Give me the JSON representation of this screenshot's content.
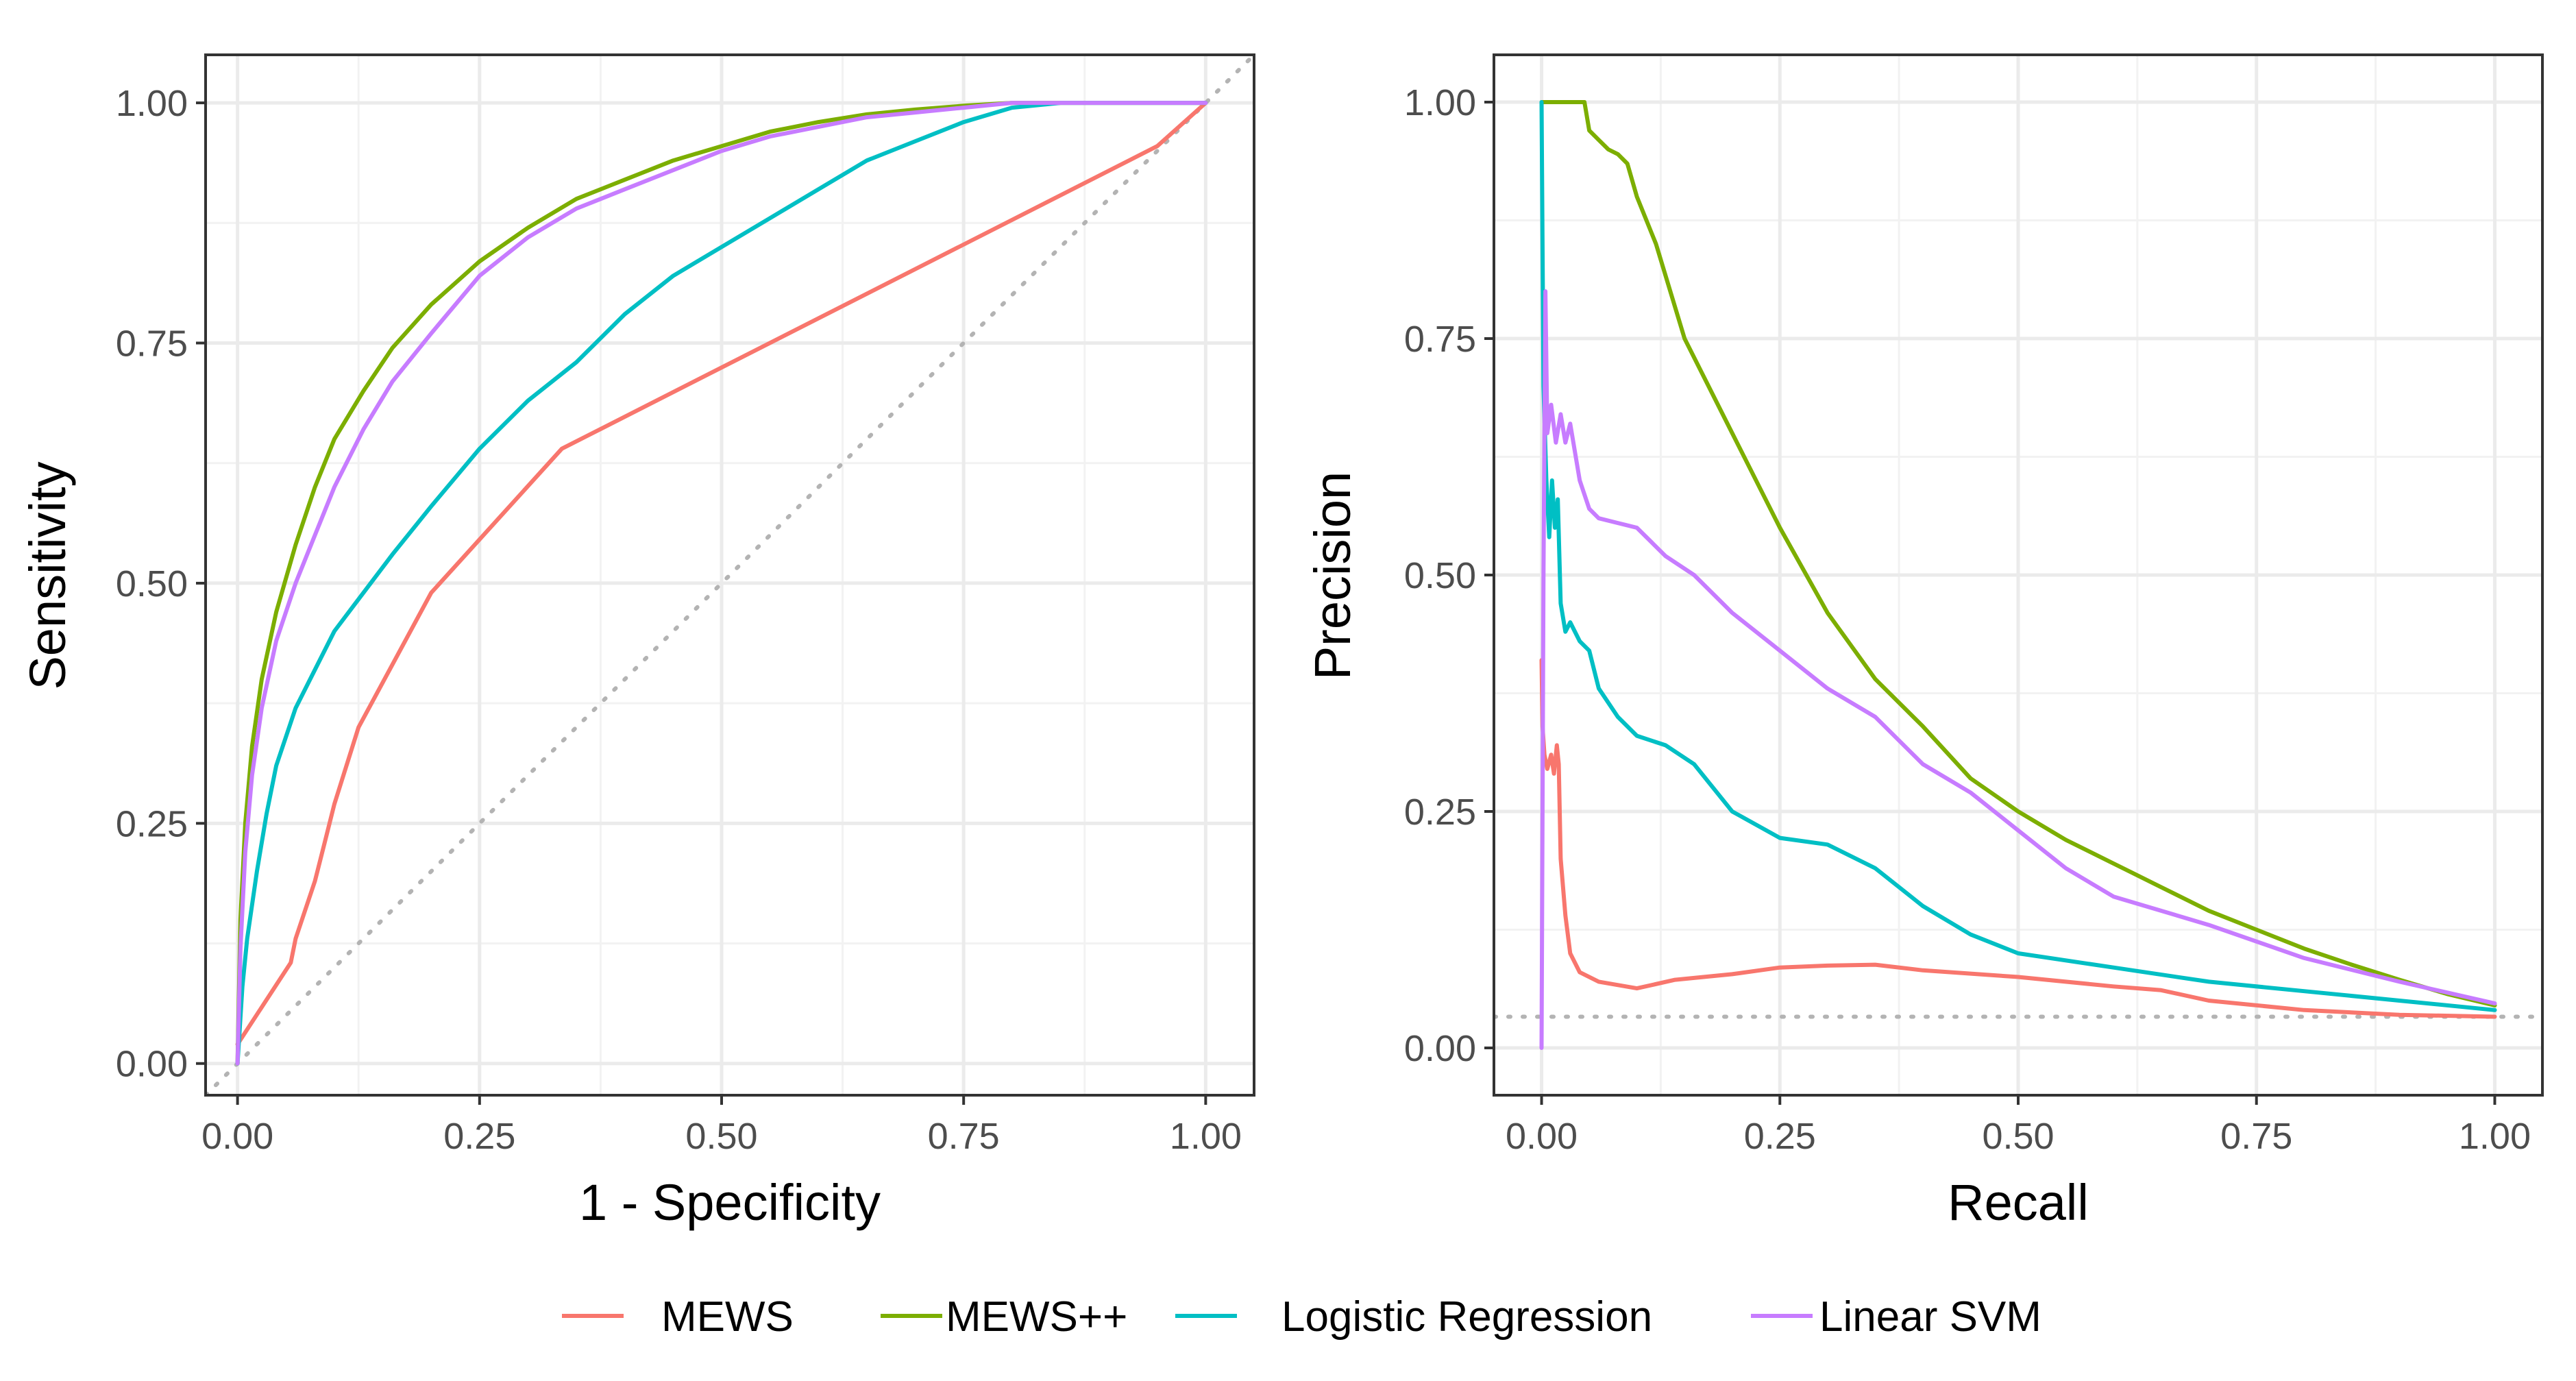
{
  "legend": {
    "entries": [
      {
        "label": "MEWS",
        "color": "#F8766D"
      },
      {
        "label": "MEWS++",
        "color": "#7CAE00"
      },
      {
        "label": "Logistic Regression",
        "color": "#00BFC4"
      },
      {
        "label": "Linear SVM",
        "color": "#C77CFF"
      }
    ]
  },
  "chart_data": [
    {
      "type": "line",
      "title": "",
      "xlabel": "1 - Specificity",
      "ylabel": "Sensitivity",
      "xlim": [
        -0.033,
        1.05
      ],
      "ylim": [
        -0.033,
        1.05
      ],
      "xticks": [
        "0.00",
        "0.25",
        "0.50",
        "0.75",
        "1.00"
      ],
      "yticks": [
        "0.00",
        "0.25",
        "0.50",
        "0.75",
        "1.00"
      ],
      "xtick_values": [
        0,
        0.25,
        0.5,
        0.75,
        1.0
      ],
      "ytick_values": [
        0,
        0.25,
        0.5,
        0.75,
        1.0
      ],
      "grid": true,
      "reference_line": {
        "from": [
          -0.033,
          -0.033
        ],
        "to": [
          1.05,
          1.05
        ],
        "color": "#b3b3b3",
        "style": "dotted"
      },
      "series": [
        {
          "name": "MEWS",
          "color": "#F8766D",
          "x": [
            0,
            0.055,
            0.06,
            0.08,
            0.09,
            0.1,
            0.125,
            0.2,
            0.335,
            0.95,
            1.0
          ],
          "y": [
            0.02,
            0.105,
            0.13,
            0.19,
            0.23,
            0.27,
            0.35,
            0.49,
            0.64,
            0.955,
            1.0
          ]
        },
        {
          "name": "MEWS++",
          "color": "#7CAE00",
          "x": [
            0,
            0.003,
            0.008,
            0.015,
            0.025,
            0.04,
            0.06,
            0.08,
            0.1,
            0.13,
            0.16,
            0.2,
            0.25,
            0.3,
            0.35,
            0.4,
            0.45,
            0.5,
            0.55,
            0.6,
            0.65,
            0.7,
            0.75,
            0.8,
            0.9,
            1.0
          ],
          "y": [
            0,
            0.15,
            0.25,
            0.33,
            0.4,
            0.47,
            0.54,
            0.6,
            0.65,
            0.7,
            0.745,
            0.79,
            0.835,
            0.87,
            0.9,
            0.92,
            0.94,
            0.955,
            0.97,
            0.98,
            0.988,
            0.993,
            0.997,
            1.0,
            1.0,
            1.0
          ]
        },
        {
          "name": "Logistic Regression",
          "color": "#00BFC4",
          "x": [
            0,
            0.005,
            0.01,
            0.02,
            0.03,
            0.04,
            0.06,
            0.08,
            0.1,
            0.13,
            0.16,
            0.2,
            0.25,
            0.3,
            0.35,
            0.4,
            0.45,
            0.5,
            0.55,
            0.6,
            0.65,
            0.7,
            0.75,
            0.8,
            0.85,
            0.9,
            1.0
          ],
          "y": [
            0,
            0.08,
            0.13,
            0.2,
            0.26,
            0.31,
            0.37,
            0.41,
            0.45,
            0.49,
            0.53,
            0.58,
            0.64,
            0.69,
            0.73,
            0.78,
            0.82,
            0.85,
            0.88,
            0.91,
            0.94,
            0.96,
            0.98,
            0.995,
            1.0,
            1.0,
            1.0
          ]
        },
        {
          "name": "Linear SVM",
          "color": "#C77CFF",
          "x": [
            0,
            0.003,
            0.008,
            0.015,
            0.025,
            0.04,
            0.06,
            0.08,
            0.1,
            0.13,
            0.16,
            0.2,
            0.25,
            0.3,
            0.35,
            0.4,
            0.45,
            0.5,
            0.55,
            0.6,
            0.65,
            0.7,
            0.75,
            0.8,
            0.9,
            1.0
          ],
          "y": [
            0,
            0.12,
            0.22,
            0.3,
            0.37,
            0.44,
            0.5,
            0.55,
            0.6,
            0.66,
            0.71,
            0.76,
            0.82,
            0.86,
            0.89,
            0.91,
            0.93,
            0.95,
            0.965,
            0.975,
            0.985,
            0.99,
            0.995,
            1.0,
            1.0,
            1.0
          ]
        }
      ]
    },
    {
      "type": "line",
      "title": "",
      "xlabel": "Recall",
      "ylabel": "Precision",
      "xlim": [
        -0.05,
        1.05
      ],
      "ylim": [
        -0.05,
        1.05
      ],
      "xticks": [
        "0.00",
        "0.25",
        "0.50",
        "0.75",
        "1.00"
      ],
      "yticks": [
        "0.00",
        "0.25",
        "0.50",
        "0.75",
        "1.00"
      ],
      "xtick_values": [
        0,
        0.25,
        0.5,
        0.75,
        1.0
      ],
      "ytick_values": [
        0,
        0.25,
        0.5,
        0.75,
        1.0
      ],
      "grid": true,
      "reference_line": {
        "from": [
          -0.05,
          0.033
        ],
        "to": [
          1.05,
          0.033
        ],
        "color": "#b3b3b3",
        "style": "dotted"
      },
      "series": [
        {
          "name": "MEWS",
          "color": "#F8766D",
          "x": [
            0,
            0.001,
            0.003,
            0.006,
            0.01,
            0.013,
            0.016,
            0.018,
            0.02,
            0.025,
            0.03,
            0.04,
            0.06,
            0.1,
            0.14,
            0.2,
            0.25,
            0.3,
            0.35,
            0.4,
            0.5,
            0.6,
            0.65,
            0.7,
            0.8,
            0.9,
            1.0
          ],
          "y": [
            0.41,
            0.34,
            0.31,
            0.295,
            0.31,
            0.29,
            0.32,
            0.3,
            0.2,
            0.14,
            0.1,
            0.08,
            0.07,
            0.063,
            0.072,
            0.078,
            0.085,
            0.087,
            0.088,
            0.082,
            0.075,
            0.065,
            0.061,
            0.05,
            0.04,
            0.035,
            0.033
          ]
        },
        {
          "name": "MEWS++",
          "color": "#7CAE00",
          "x": [
            0,
            0.045,
            0.05,
            0.06,
            0.07,
            0.08,
            0.09,
            0.1,
            0.12,
            0.15,
            0.2,
            0.25,
            0.3,
            0.35,
            0.4,
            0.45,
            0.5,
            0.55,
            0.6,
            0.65,
            0.7,
            0.75,
            0.8,
            0.85,
            0.9,
            0.95,
            1.0
          ],
          "y": [
            1.0,
            1.0,
            0.97,
            0.96,
            0.95,
            0.945,
            0.935,
            0.9,
            0.85,
            0.75,
            0.65,
            0.55,
            0.46,
            0.39,
            0.34,
            0.285,
            0.25,
            0.22,
            0.195,
            0.17,
            0.145,
            0.125,
            0.105,
            0.088,
            0.072,
            0.057,
            0.045
          ]
        },
        {
          "name": "Logistic Regression",
          "color": "#00BFC4",
          "x": [
            0,
            0.002,
            0.005,
            0.008,
            0.011,
            0.014,
            0.017,
            0.02,
            0.025,
            0.03,
            0.04,
            0.05,
            0.06,
            0.08,
            0.1,
            0.13,
            0.16,
            0.2,
            0.25,
            0.3,
            0.35,
            0.4,
            0.45,
            0.5,
            0.6,
            0.7,
            0.8,
            0.9,
            1.0
          ],
          "y": [
            1.0,
            0.7,
            0.6,
            0.54,
            0.6,
            0.55,
            0.58,
            0.47,
            0.44,
            0.45,
            0.43,
            0.42,
            0.38,
            0.35,
            0.33,
            0.32,
            0.3,
            0.25,
            0.222,
            0.215,
            0.19,
            0.15,
            0.12,
            0.1,
            0.085,
            0.07,
            0.06,
            0.05,
            0.04
          ]
        },
        {
          "name": "Linear SVM",
          "color": "#C77CFF",
          "x": [
            0,
            0.002,
            0.004,
            0.006,
            0.01,
            0.015,
            0.02,
            0.025,
            0.03,
            0.04,
            0.05,
            0.06,
            0.08,
            0.1,
            0.13,
            0.16,
            0.2,
            0.25,
            0.3,
            0.35,
            0.4,
            0.45,
            0.5,
            0.55,
            0.6,
            0.7,
            0.8,
            0.9,
            1.0
          ],
          "y": [
            0,
            0.5,
            0.8,
            0.65,
            0.68,
            0.64,
            0.67,
            0.64,
            0.66,
            0.6,
            0.57,
            0.56,
            0.555,
            0.55,
            0.52,
            0.5,
            0.46,
            0.42,
            0.38,
            0.35,
            0.3,
            0.27,
            0.23,
            0.19,
            0.16,
            0.13,
            0.095,
            0.07,
            0.047
          ]
        }
      ]
    }
  ]
}
